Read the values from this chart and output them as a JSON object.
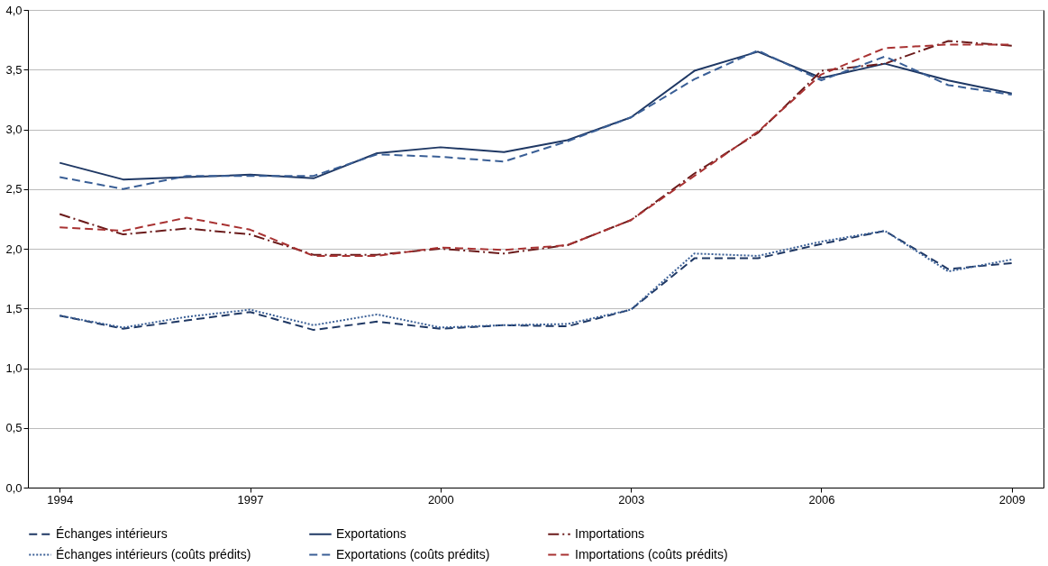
{
  "chart_data": {
    "type": "line",
    "x": [
      1994,
      1995,
      1996,
      1997,
      1998,
      1999,
      2000,
      2001,
      2002,
      2003,
      2004,
      2005,
      2006,
      2007,
      2008,
      2009
    ],
    "xlim": [
      1993.5,
      2009.5
    ],
    "xticks": [
      1994,
      1997,
      2000,
      2003,
      2006,
      2009
    ],
    "ylim": [
      0,
      4
    ],
    "yticks": [
      {
        "value": 0,
        "label": "0,0"
      },
      {
        "value": 0.5,
        "label": "0,5"
      },
      {
        "value": 1,
        "label": "1,0"
      },
      {
        "value": 1.5,
        "label": "1,5"
      },
      {
        "value": 2,
        "label": "2,0"
      },
      {
        "value": 2.5,
        "label": "2,5"
      },
      {
        "value": 3,
        "label": "3,0"
      },
      {
        "value": 3.5,
        "label": "3,5"
      },
      {
        "value": 4,
        "label": "4,0"
      }
    ],
    "grid": "y",
    "legend": "bottom",
    "series": [
      {
        "name": "Échanges intérieurs",
        "color": "#1f3864",
        "line_style": "dashed",
        "values": [
          1.44,
          1.33,
          1.4,
          1.47,
          1.32,
          1.39,
          1.33,
          1.36,
          1.35,
          1.49,
          1.92,
          1.92,
          2.04,
          2.15,
          1.83,
          1.88
        ]
      },
      {
        "name": "Exportations",
        "color": "#1f3864",
        "line_style": "solid",
        "values": [
          2.72,
          2.58,
          2.6,
          2.62,
          2.59,
          2.8,
          2.85,
          2.81,
          2.91,
          3.1,
          3.49,
          3.65,
          3.43,
          3.55,
          3.41,
          3.3
        ]
      },
      {
        "name": "Importations",
        "color": "#6b1b1b",
        "line_style": "dashdot",
        "values": [
          2.29,
          2.12,
          2.17,
          2.12,
          1.95,
          1.95,
          2.0,
          1.96,
          2.03,
          2.24,
          2.63,
          2.97,
          3.49,
          3.55,
          3.74,
          3.7
        ]
      },
      {
        "name": "Échanges intérieurs (coûts prédits)",
        "color": "#3a5f96",
        "line_style": "dotted",
        "values": [
          1.44,
          1.34,
          1.43,
          1.49,
          1.36,
          1.45,
          1.34,
          1.36,
          1.37,
          1.49,
          1.96,
          1.94,
          2.06,
          2.15,
          1.81,
          1.91
        ]
      },
      {
        "name": "Exportations (coûts prédits)",
        "color": "#3a5f96",
        "line_style": "dashed",
        "values": [
          2.6,
          2.5,
          2.61,
          2.61,
          2.61,
          2.79,
          2.77,
          2.73,
          2.9,
          3.1,
          3.42,
          3.66,
          3.41,
          3.61,
          3.37,
          3.29
        ]
      },
      {
        "name": "Importations (coûts prédits)",
        "color": "#a83232",
        "line_style": "dashed",
        "values": [
          2.18,
          2.15,
          2.26,
          2.16,
          1.94,
          1.94,
          2.01,
          1.99,
          2.03,
          2.24,
          2.61,
          2.98,
          3.46,
          3.68,
          3.71,
          3.71
        ]
      }
    ]
  }
}
